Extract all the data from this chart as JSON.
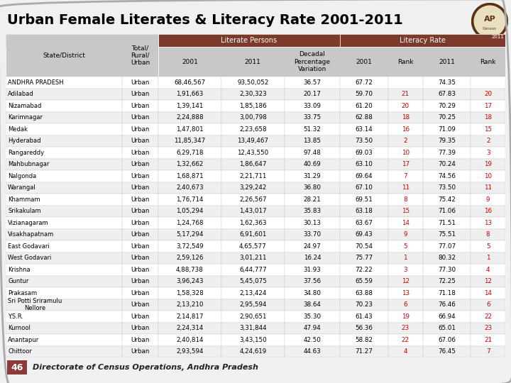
{
  "title": "Urban Female Literates & Literacy Rate 2001-2011",
  "footer": "Directorate of Census Operations, Andhra Pradesh",
  "footer_page": "46",
  "col_header_texts": [
    "State/District",
    "Total/\nRural/\nUrban",
    "2001",
    "2011",
    "Decadal\nPercentage\nVariation",
    "2001",
    "Rank",
    "2011",
    "Rank"
  ],
  "rows": [
    [
      "ANDHRA PRADESH",
      "Urban",
      "68,46,567",
      "93,50,052",
      "36.57",
      "67.72",
      "",
      "74.35",
      ""
    ],
    [
      "Adilabad",
      "Urban",
      "1,91,663",
      "2,30,323",
      "20.17",
      "59.70",
      "21",
      "67.83",
      "20"
    ],
    [
      "Nizamabad",
      "Urban",
      "1,39,141",
      "1,85,186",
      "33.09",
      "61.20",
      "20",
      "70.29",
      "17"
    ],
    [
      "Karimnagar",
      "Urban",
      "2,24,888",
      "3,00,798",
      "33.75",
      "62.88",
      "18",
      "70.25",
      "18"
    ],
    [
      "Medak",
      "Urban",
      "1,47,801",
      "2,23,658",
      "51.32",
      "63.14",
      "16",
      "71.09",
      "15"
    ],
    [
      "Hyderabad",
      "Urban",
      "11,85,347",
      "13,49,467",
      "13.85",
      "73.50",
      "2",
      "79.35",
      "2"
    ],
    [
      "Rangareddy",
      "Urban",
      "6,29,718",
      "12,43,550",
      "97.48",
      "69.03",
      "10",
      "77.39",
      "3"
    ],
    [
      "Mahbubnagar",
      "Urban",
      "1,32,662",
      "1,86,647",
      "40.69",
      "63.10",
      "17",
      "70.24",
      "19"
    ],
    [
      "Nalgonda",
      "Urban",
      "1,68,871",
      "2,21,711",
      "31.29",
      "69.64",
      "7",
      "74.56",
      "10"
    ],
    [
      "Warangal",
      "Urban",
      "2,40,673",
      "3,29,242",
      "36.80",
      "67.10",
      "11",
      "73.50",
      "11"
    ],
    [
      "Khammam",
      "Urban",
      "1,76,714",
      "2,26,567",
      "28.21",
      "69.51",
      "8",
      "75.42",
      "9"
    ],
    [
      "Srikakulam",
      "Urban",
      "1,05,294",
      "1,43,017",
      "35.83",
      "63.18",
      "15",
      "71.06",
      "16"
    ],
    [
      "Vizianagaram",
      "Urban",
      "1,24,768",
      "1,62,363",
      "30.13",
      "63.67",
      "14",
      "71.51",
      "13"
    ],
    [
      "Visakhapatnam",
      "Urban",
      "5,17,294",
      "6,91,601",
      "33.70",
      "69.43",
      "9",
      "75.51",
      "8"
    ],
    [
      "East Godavari",
      "Urban",
      "3,72,549",
      "4,65,577",
      "24.97",
      "70.54",
      "5",
      "77.07",
      "5"
    ],
    [
      "West Godavari",
      "Urban",
      "2,59,126",
      "3,01,211",
      "16.24",
      "75.77",
      "1",
      "80.32",
      "1"
    ],
    [
      "Krishna",
      "Urban",
      "4,88,738",
      "6,44,777",
      "31.93",
      "72.22",
      "3",
      "77.30",
      "4"
    ],
    [
      "Guntur",
      "Urban",
      "3,96,243",
      "5,45,075",
      "37.56",
      "65.59",
      "12",
      "72.25",
      "12"
    ],
    [
      "Prakasam",
      "Urban",
      "1,58,328",
      "2,13,424",
      "34.80",
      "63.88",
      "13",
      "71.18",
      "14"
    ],
    [
      "Sri Potti Sriramulu\nNellore",
      "Urban",
      "2,13,210",
      "2,95,594",
      "38.64",
      "70.23",
      "6",
      "76.46",
      "6"
    ],
    [
      "Y.S.R.",
      "Urban",
      "2,14,817",
      "2,90,651",
      "35.30",
      "61.43",
      "19",
      "66.94",
      "22"
    ],
    [
      "Kurnool",
      "Urban",
      "2,24,314",
      "3,31,844",
      "47.94",
      "56.36",
      "23",
      "65.01",
      "23"
    ],
    [
      "Anantapur",
      "Urban",
      "2,40,814",
      "3,43,150",
      "42.50",
      "58.82",
      "22",
      "67.06",
      "21"
    ],
    [
      "Chittoor",
      "Urban",
      "2,93,594",
      "4,24,619",
      "44.63",
      "71.27",
      "4",
      "76.45",
      "7"
    ]
  ],
  "col_widths_raw": [
    155,
    48,
    84,
    84,
    74,
    64,
    46,
    64,
    46
  ],
  "header_bar_color": "#7B3A2A",
  "subheader_bg": "#C8C8C8",
  "row_bg_even": "#FFFFFF",
  "row_bg_odd": "#EFEFEF",
  "outer_bg": "#F0F0F0",
  "rank_color": "#CC0000",
  "title_fontsize": 14,
  "header_fontsize": 6.5,
  "data_fontsize": 6.3
}
